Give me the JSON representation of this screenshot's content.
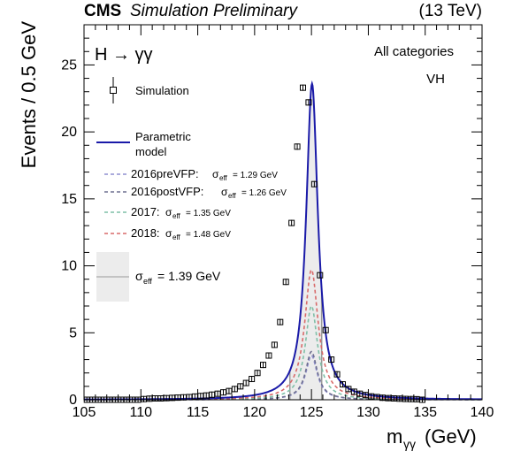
{
  "header": {
    "experiment": "CMS",
    "status": "Simulation Preliminary",
    "energy": "(13 TeV)"
  },
  "annotations": {
    "process": "H → γγ",
    "category": "All categories",
    "tag": "VH"
  },
  "legend": {
    "simulation": "Simulation",
    "model_line1": "Parametric",
    "model_line2": "model",
    "era_2016pre": "2016preVFP:",
    "era_2016post": "2016postVFP:",
    "era_2017": "2017:",
    "era_2018": "2018:",
    "sigma_2016pre": "σ",
    "sigma_2016pre_sub": "eff",
    "value_2016pre": "= 1.29 GeV",
    "value_2016post": "= 1.26 GeV",
    "value_2017": "= 1.35 GeV",
    "value_2018": "= 1.48 GeV",
    "sigma_total_value": "= 1.39 GeV"
  },
  "colors": {
    "model": "#1a1aa8",
    "era_2016pre": "#8f8fd0",
    "era_2016post": "#6f7090",
    "era_2017": "#7fbfa7",
    "era_2018": "#d86a6a",
    "band": "#ececec",
    "band_edge": "#9a9a9a"
  },
  "chart_data": {
    "type": "line",
    "xlabel": "m",
    "xlabel_sub": "γγ",
    "xlabel_unit": "(GeV)",
    "ylabel": "Events /  0.5 GeV",
    "xlim": [
      105,
      140
    ],
    "ylim": [
      0,
      28
    ],
    "x_ticks": [
      105,
      110,
      115,
      120,
      125,
      130,
      135,
      140
    ],
    "y_ticks": [
      0,
      5,
      10,
      15,
      20,
      25
    ],
    "sigma_eff_band": [
      123.1,
      125.9
    ],
    "simulation_points": {
      "x": [
        105.25,
        105.75,
        106.25,
        106.75,
        107.25,
        107.75,
        108.25,
        108.75,
        109.25,
        109.75,
        110.25,
        110.75,
        111.25,
        111.75,
        112.25,
        112.75,
        113.25,
        113.75,
        114.25,
        114.75,
        115.25,
        115.75,
        116.25,
        116.75,
        117.25,
        117.75,
        118.25,
        118.75,
        119.25,
        119.75,
        120.25,
        120.75,
        121.25,
        121.75,
        122.25,
        122.75,
        123.25,
        123.75,
        124.25,
        124.75,
        125.25,
        125.75,
        126.25,
        126.75,
        127.25,
        127.75,
        128.25,
        128.75,
        129.25,
        129.75,
        130.25,
        130.75,
        131.25,
        131.75,
        132.25,
        132.75,
        133.25,
        133.75,
        134.25,
        134.75
      ],
      "y": [
        0,
        0,
        0,
        0,
        0,
        0,
        0,
        0,
        0,
        0,
        0.05,
        0.08,
        0.1,
        0.1,
        0.12,
        0.14,
        0.16,
        0.18,
        0.2,
        0.24,
        0.28,
        0.32,
        0.38,
        0.45,
        0.55,
        0.65,
        0.8,
        1.0,
        1.25,
        1.55,
        2.0,
        2.6,
        3.3,
        4.1,
        5.8,
        8.8,
        13.2,
        18.9,
        23.3,
        22.2,
        16.1,
        9.3,
        5.2,
        3.0,
        1.9,
        1.15,
        0.8,
        0.6,
        0.45,
        0.35,
        0.25,
        0.2,
        0.15,
        0.12,
        0.1,
        0.08,
        0.06,
        0.05,
        0.04,
        0
      ]
    },
    "series": [
      {
        "name": "Parametric model",
        "peak": 23.6,
        "mean": 125.05,
        "hwhm": 0.62,
        "style": "solid"
      },
      {
        "name": "2016preVFP",
        "peak": 3.3,
        "mean": 125.0,
        "hwhm": 0.62,
        "style": "dashed"
      },
      {
        "name": "2016postVFP",
        "peak": 3.6,
        "mean": 125.0,
        "hwhm": 0.62,
        "style": "dashed"
      },
      {
        "name": "2017",
        "peak": 7.0,
        "mean": 125.0,
        "hwhm": 0.65,
        "style": "dashed"
      },
      {
        "name": "2018",
        "peak": 9.7,
        "mean": 125.0,
        "hwhm": 0.72,
        "style": "dashed"
      }
    ]
  }
}
